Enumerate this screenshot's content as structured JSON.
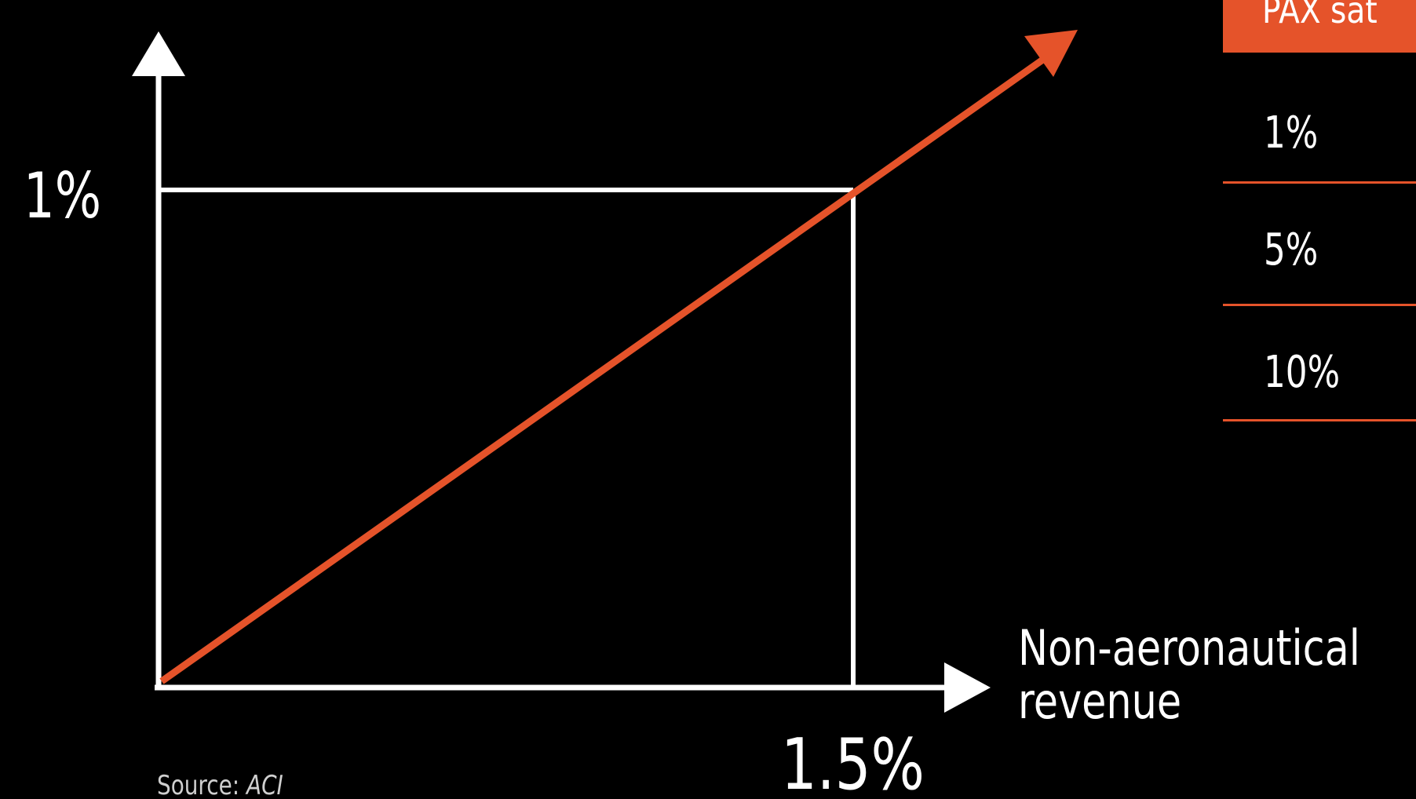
{
  "figure": {
    "y_value_label": "1%",
    "x_value_label": "1.5%",
    "x_axis_title_line1": "Non-aeronautical",
    "x_axis_title_line2": "revenue",
    "source_prefix": "Source: ",
    "source_name": "ACI"
  },
  "table": {
    "header": "PAX sat",
    "rows": [
      "1%",
      "5%",
      "10%"
    ]
  },
  "colors": {
    "background": "#000000",
    "accent": "#e5532a",
    "foreground": "#ffffff"
  }
}
